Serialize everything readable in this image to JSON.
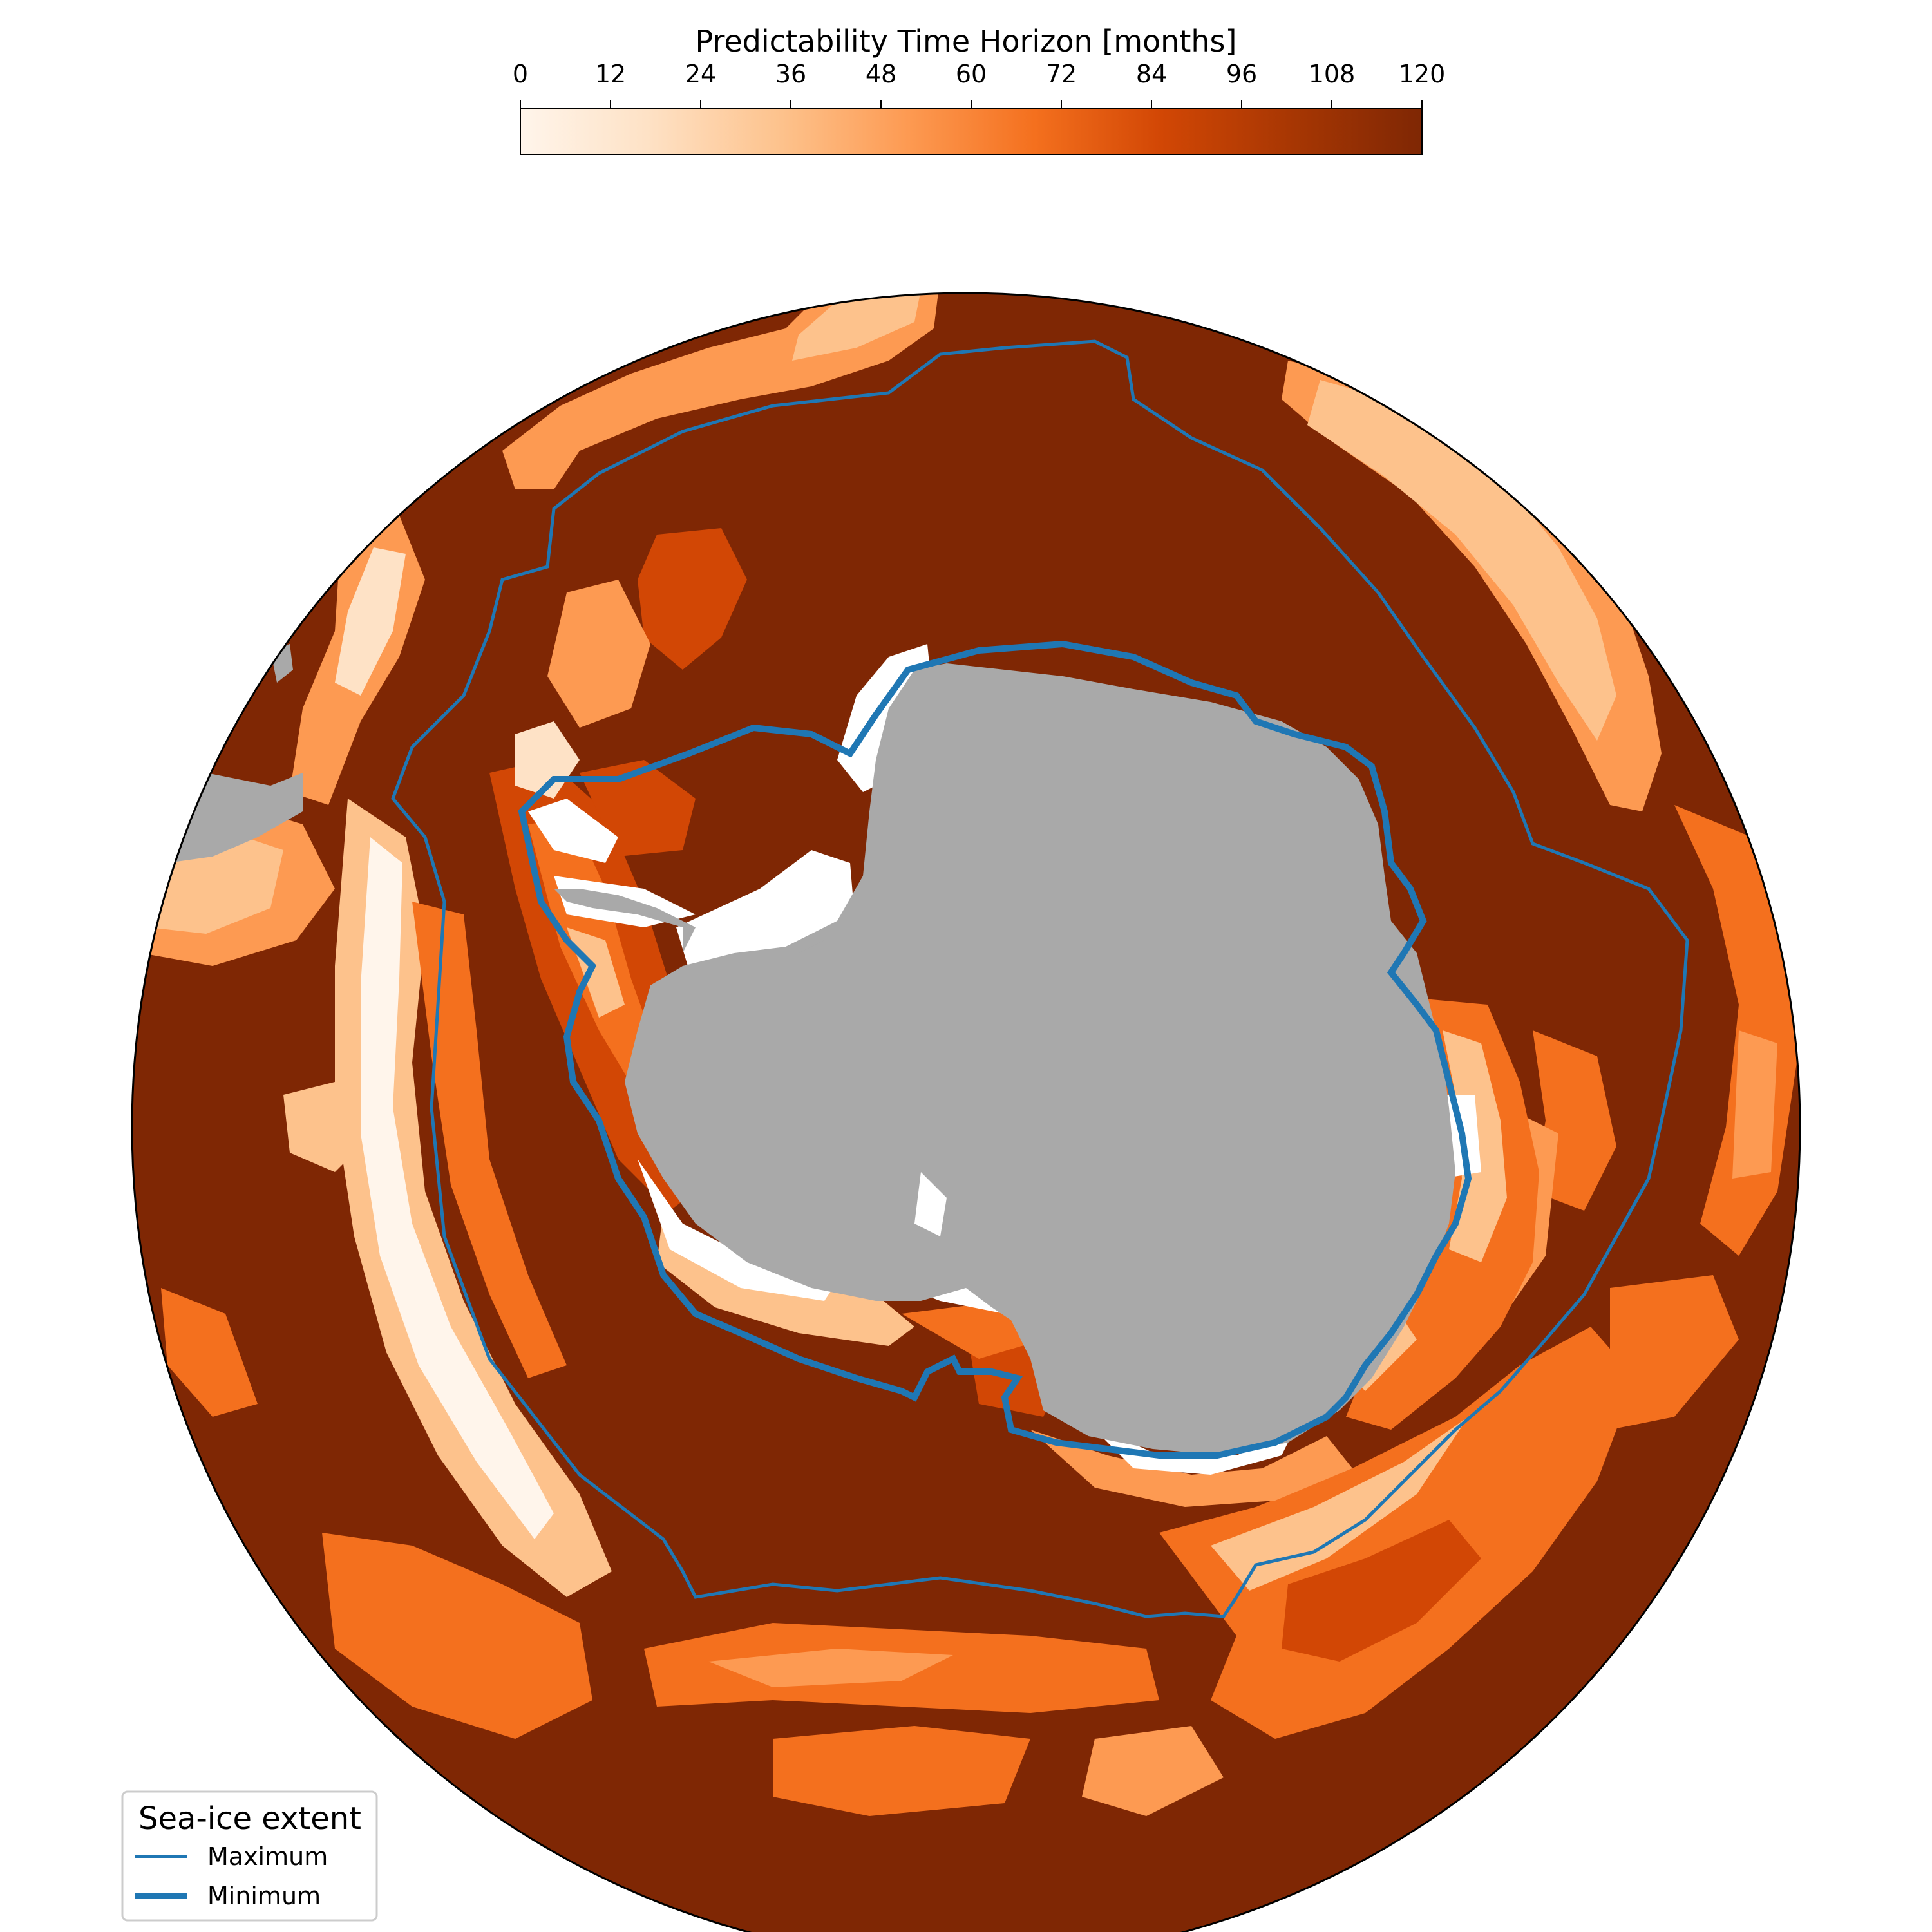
{
  "colorbar": {
    "title": "Predictability Time Horizon [months]",
    "ticks": [
      "0",
      "12",
      "24",
      "36",
      "48",
      "60",
      "72",
      "84",
      "96",
      "108",
      "120"
    ],
    "range": [
      0,
      120
    ],
    "colors": [
      "#fff5eb",
      "#fee2c6",
      "#fdc28c",
      "#fd9a52",
      "#f4701e",
      "#d24705",
      "#a63603",
      "#7f2704"
    ]
  },
  "map": {
    "projection": "south-polar-stereographic",
    "ocean_high_color": "#7f2704",
    "land_color": "#a9a9a9",
    "ice_shelf_color": "#ffffff",
    "sea_ice_line_color": "#1f77b4"
  },
  "legend": {
    "title": "Sea-ice extent",
    "items": [
      {
        "label": "Maximum",
        "line": "thin"
      },
      {
        "label": "Minimum",
        "line": "thick"
      }
    ]
  }
}
